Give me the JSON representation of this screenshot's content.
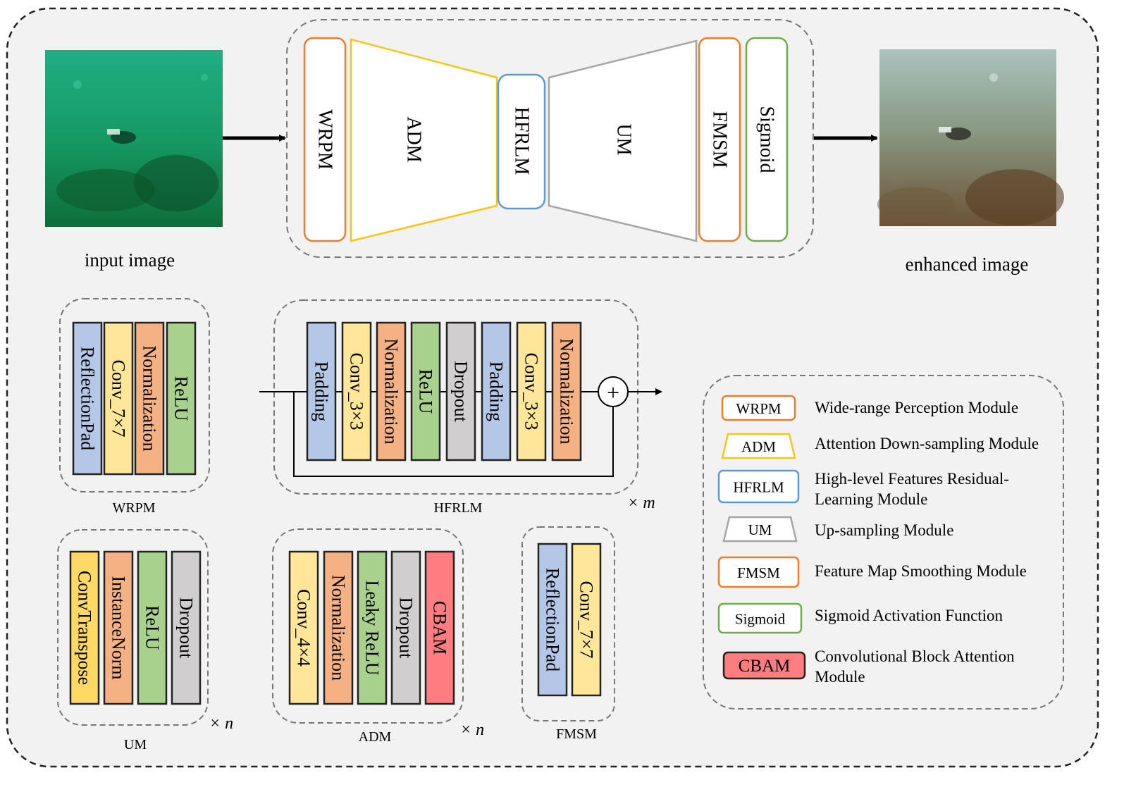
{
  "top": {
    "input_caption": "input image",
    "output_caption": "enhanced image",
    "pipeline": {
      "wrpm": "WRPM",
      "adm": "ADM",
      "hfrlm": "HFRLM",
      "um": "UM",
      "fmsm": "FMSM",
      "sigmoid": "Sigmoid"
    }
  },
  "modules": {
    "wrpm": {
      "caption": "WRPM",
      "layers": [
        "ReflectionPad",
        "Conv_7×7",
        "Normalization",
        "ReLU"
      ]
    },
    "hfrlm": {
      "caption": "HFRLM",
      "repeat": "× m",
      "layers": [
        "Padding",
        "Conv_3×3",
        "Normalization",
        "ReLU",
        "Dropout",
        "Padding",
        "Conv_3×3",
        "Normalization"
      ],
      "sum_symbol": "+"
    },
    "um": {
      "caption": "UM",
      "repeat": "× n",
      "layers": [
        "ConvTranspose",
        "InstanceNorm",
        "ReLU",
        "Dropout"
      ]
    },
    "adm": {
      "caption": "ADM",
      "repeat": "× n",
      "layers": [
        "Conv_4×4",
        "Normalization",
        "Leaky ReLU",
        "Dropout",
        "CBAM"
      ]
    },
    "fmsm": {
      "caption": "FMSM",
      "layers": [
        "ReflectionPad",
        "Conv_7×7"
      ]
    }
  },
  "legend": {
    "items": [
      {
        "tag": "WRPM",
        "desc": [
          "Wide-range Perception Module"
        ]
      },
      {
        "tag": "ADM",
        "desc": [
          "Attention Down-sampling Module"
        ]
      },
      {
        "tag": "HFRLM",
        "desc": [
          "High-level Features Residual-",
          "Learning Module"
        ]
      },
      {
        "tag": "UM",
        "desc": [
          "Up-sampling Module"
        ]
      },
      {
        "tag": "FMSM",
        "desc": [
          "Feature Map Smoothing Module"
        ]
      },
      {
        "tag": "Sigmoid",
        "desc": [
          "Sigmoid Activation Function"
        ]
      },
      {
        "tag": "CBAM",
        "desc": [
          "Convolutional Block Attention",
          "Module"
        ]
      }
    ]
  },
  "colors": {
    "orange_border": "#f07c2c",
    "yellow_border": "#f5c518",
    "blue_border": "#5b9bd5",
    "gray_border": "#a6a6a6",
    "green_border": "#70ad47",
    "layer_blue": "#b4c7e7",
    "layer_yellow": "#ffe699",
    "layer_orange": "#f4b183",
    "layer_green": "#a9d18e",
    "layer_gray": "#d0cece",
    "layer_red": "#ff7c80",
    "layer_gold": "#ffd966",
    "panel_bg": "#f2f2f2"
  }
}
